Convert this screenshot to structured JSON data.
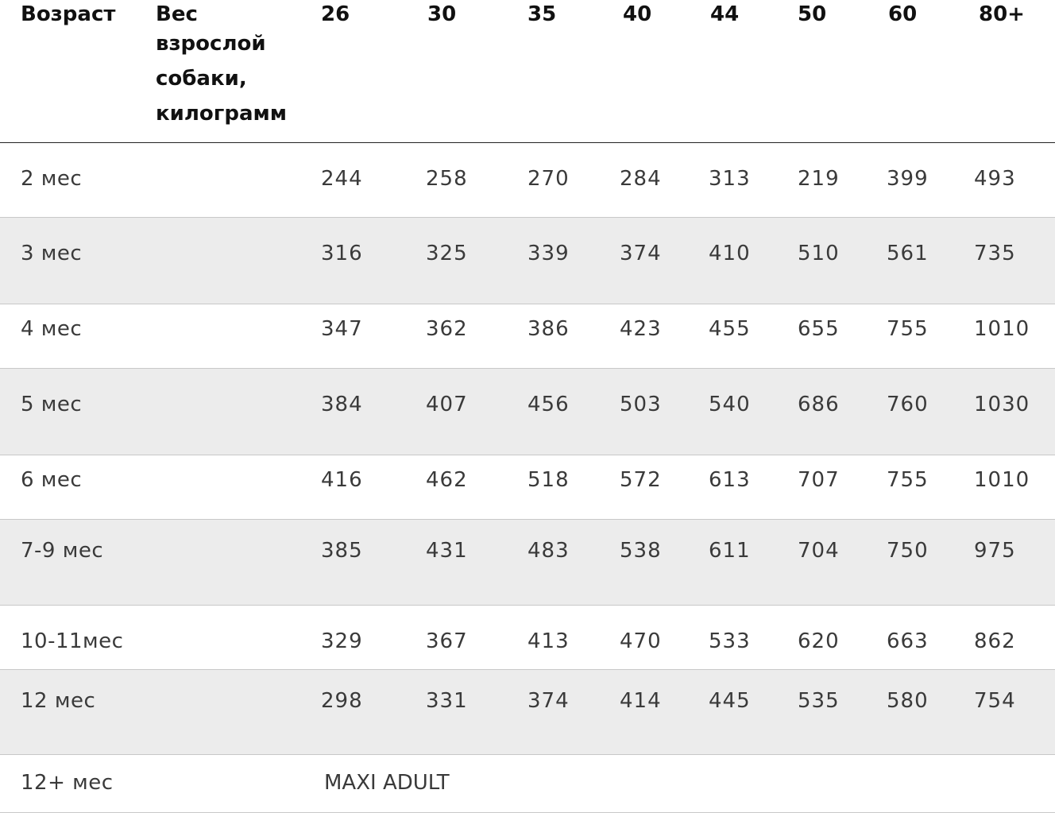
{
  "header": {
    "age_label": "Возраст",
    "weight_label_lines": [
      "Вес",
      "взрослой",
      "собаки,",
      "килограмм"
    ],
    "weights": [
      "26",
      "30",
      "35",
      "40",
      "44",
      "50",
      "60",
      "80+"
    ]
  },
  "rows": [
    {
      "age": "2 мес",
      "values": [
        "244",
        "258",
        "270",
        "284",
        "313",
        "219",
        "399",
        "493"
      ]
    },
    {
      "age": "3 мес",
      "values": [
        "316",
        "325",
        "339",
        "374",
        "410",
        "510",
        "561",
        "735"
      ]
    },
    {
      "age": "4 мес",
      "values": [
        "347",
        "362",
        "386",
        "423",
        "455",
        "655",
        "755",
        "1010"
      ]
    },
    {
      "age": "5 мес",
      "values": [
        "384",
        "407",
        "456",
        "503",
        "540",
        "686",
        "760",
        "1030"
      ]
    },
    {
      "age": "6 мес",
      "values": [
        "416",
        "462",
        "518",
        "572",
        "613",
        "707",
        "755",
        "1010"
      ]
    },
    {
      "age": "7-9 мес",
      "values": [
        "385",
        "431",
        "483",
        "538",
        "611",
        "704",
        "750",
        "975"
      ]
    },
    {
      "age": "10-11мес",
      "values": [
        "329",
        "367",
        "413",
        "470",
        "533",
        "620",
        "663",
        "862"
      ]
    },
    {
      "age": "12 мес",
      "values": [
        "298",
        "331",
        "374",
        "414",
        "445",
        "535",
        "580",
        "754"
      ]
    }
  ],
  "last_row": {
    "age": "12+ мес",
    "note": "MAXI ADULT"
  }
}
